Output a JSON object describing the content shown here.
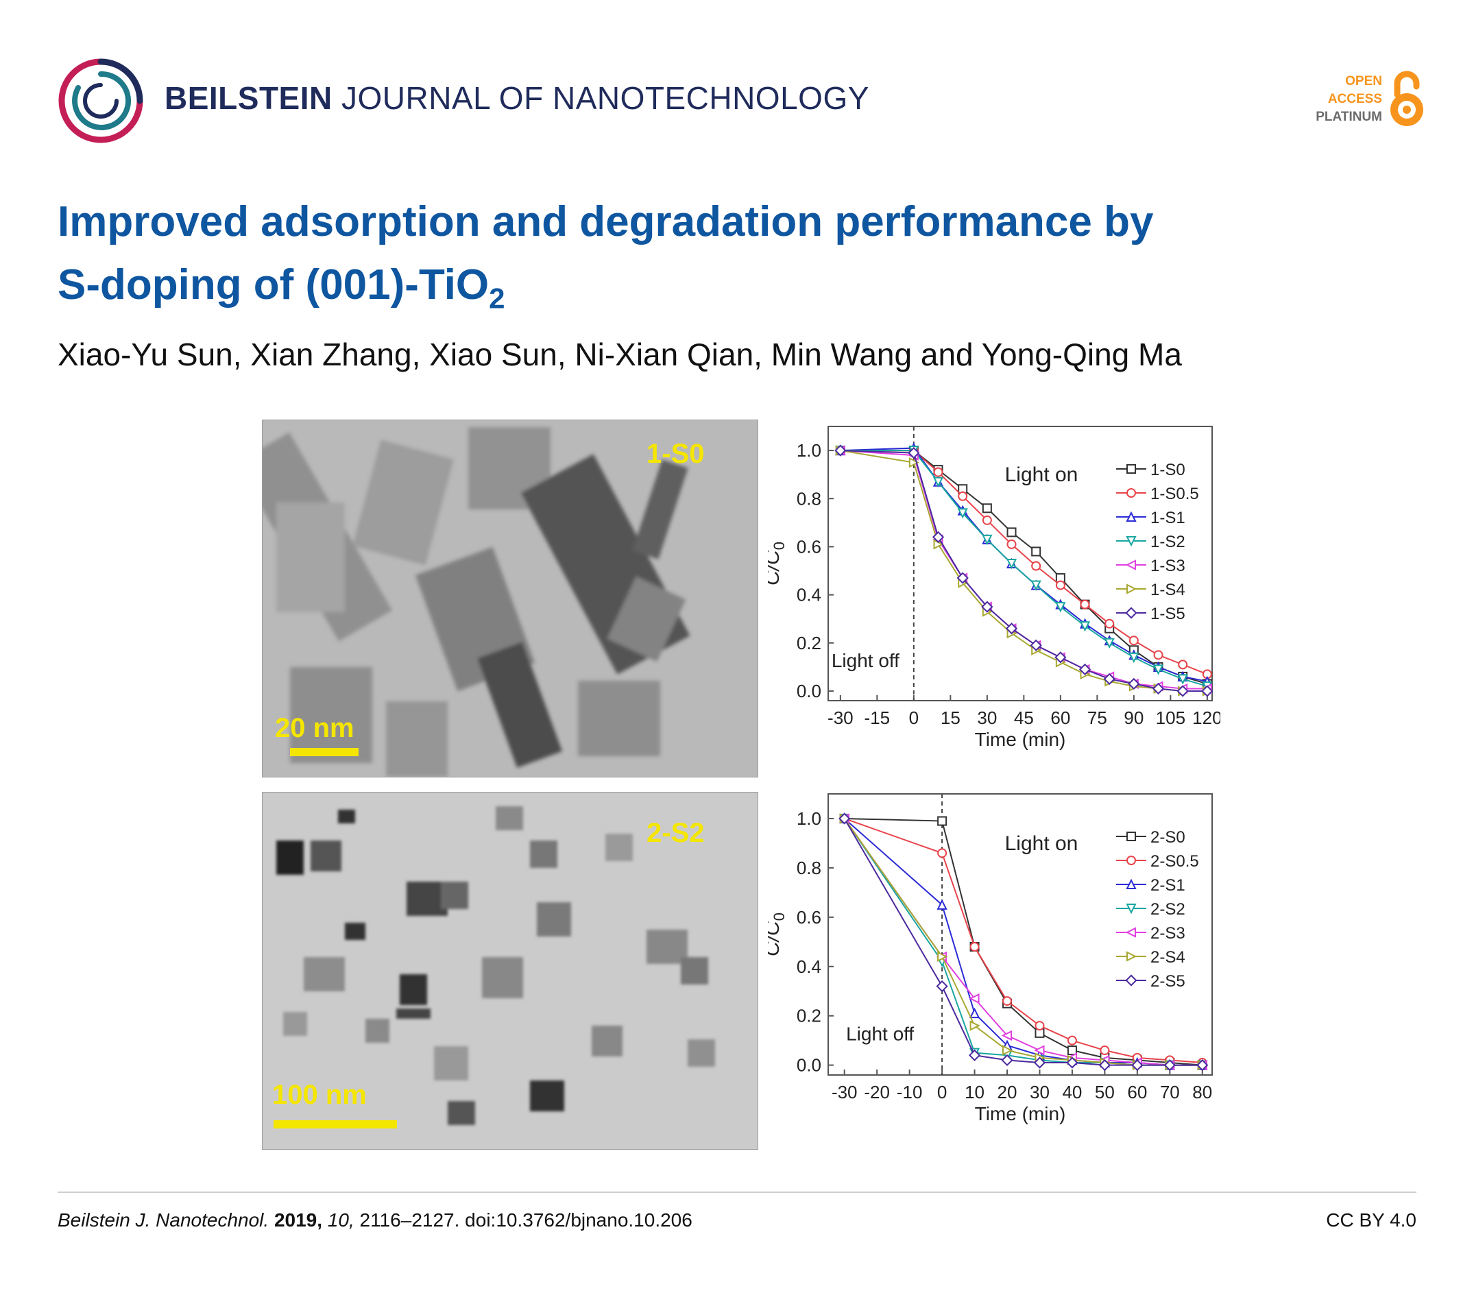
{
  "header": {
    "journal_bold": "BEILSTEIN",
    "journal_light": "JOURNAL OF NANOTECHNOLOGY",
    "oa_line1": "OPEN",
    "oa_line2": "ACCESS",
    "oa_line3": "PLATINUM",
    "colors": {
      "navy": "#1f2b5b",
      "open_access": "#f7941d",
      "title": "#0f56a0"
    }
  },
  "article": {
    "title_line1": "Improved adsorption and degradation performance by",
    "title_line2_prefix": "S-doping of (001)-TiO",
    "title_line2_sub": "2",
    "authors": "Xiao-Yu Sun, Xian Zhang, Xiao Sun, Ni-Xian Qian, Min Wang and Yong-Qing Ma"
  },
  "figure": {
    "tem_top": {
      "label": "1-S0",
      "scale": "20 nm"
    },
    "tem_bottom": {
      "label": "2-S2",
      "scale": "100 nm"
    }
  },
  "chart_data": [
    {
      "type": "line",
      "xlabel": "Time (min)",
      "ylabel": "C/C",
      "ylabel_sub": "0",
      "xlim": [
        -35,
        122
      ],
      "ylim": [
        -0.04,
        1.1
      ],
      "xticks": [
        -30,
        -15,
        0,
        15,
        30,
        45,
        60,
        75,
        90,
        105,
        120
      ],
      "xtick_labels": [
        "-30",
        "-15",
        "0",
        "15",
        "30",
        "45",
        "60",
        "75",
        "90",
        "105",
        "120"
      ],
      "yticks": [
        0.0,
        0.2,
        0.4,
        0.6,
        0.8,
        1.0
      ],
      "ytick_labels": [
        "0.0",
        "0.2",
        "0.4",
        "0.6",
        "0.8",
        "1.0"
      ],
      "annotations": [
        "Light on",
        "Light off"
      ],
      "legend_position": "top-right",
      "x": [
        -30,
        0,
        10,
        20,
        30,
        40,
        50,
        60,
        70,
        80,
        90,
        100,
        110,
        120
      ],
      "series": [
        {
          "name": "1-S0",
          "marker": "square",
          "color": "#333333",
          "values": [
            1.0,
            1.0,
            0.92,
            0.84,
            0.76,
            0.66,
            0.58,
            0.47,
            0.36,
            0.26,
            0.17,
            0.1,
            0.06,
            0.03
          ]
        },
        {
          "name": "1-S0.5",
          "marker": "circle",
          "color": "#e8434a",
          "values": [
            1.0,
            1.0,
            0.91,
            0.81,
            0.71,
            0.61,
            0.52,
            0.44,
            0.36,
            0.28,
            0.21,
            0.15,
            0.11,
            0.07
          ]
        },
        {
          "name": "1-S1",
          "marker": "triangle-up",
          "color": "#2b2bd6",
          "values": [
            1.0,
            1.01,
            0.87,
            0.75,
            0.63,
            0.53,
            0.44,
            0.36,
            0.28,
            0.21,
            0.15,
            0.1,
            0.06,
            0.04
          ]
        },
        {
          "name": "1-S2",
          "marker": "triangle-down",
          "color": "#19a6a0",
          "values": [
            1.0,
            1.0,
            0.87,
            0.74,
            0.63,
            0.53,
            0.44,
            0.35,
            0.27,
            0.2,
            0.14,
            0.09,
            0.05,
            0.02
          ]
        },
        {
          "name": "1-S3",
          "marker": "triangle-left",
          "color": "#e040e0",
          "values": [
            1.0,
            0.98,
            0.63,
            0.47,
            0.35,
            0.26,
            0.19,
            0.14,
            0.09,
            0.06,
            0.03,
            0.02,
            0.01,
            0.01
          ]
        },
        {
          "name": "1-S4",
          "marker": "triangle-right",
          "color": "#a8a832",
          "values": [
            1.0,
            0.95,
            0.61,
            0.45,
            0.33,
            0.24,
            0.17,
            0.12,
            0.07,
            0.04,
            0.02,
            0.01,
            0.0,
            0.0
          ]
        },
        {
          "name": "1-S5",
          "marker": "diamond",
          "color": "#4b2a9e",
          "values": [
            1.0,
            0.99,
            0.64,
            0.47,
            0.35,
            0.26,
            0.19,
            0.14,
            0.09,
            0.05,
            0.03,
            0.01,
            0.0,
            0.0
          ]
        }
      ]
    },
    {
      "type": "line",
      "xlabel": "Time (min)",
      "ylabel": "C/C",
      "ylabel_sub": "0",
      "xlim": [
        -35,
        83
      ],
      "ylim": [
        -0.04,
        1.1
      ],
      "xticks": [
        -30,
        -20,
        -10,
        0,
        10,
        20,
        30,
        40,
        50,
        60,
        70,
        80
      ],
      "xtick_labels": [
        "-30",
        "-20",
        "-10",
        "0",
        "10",
        "20",
        "30",
        "40",
        "50",
        "60",
        "70",
        "80"
      ],
      "yticks": [
        0.0,
        0.2,
        0.4,
        0.6,
        0.8,
        1.0
      ],
      "ytick_labels": [
        "0.0",
        "0.2",
        "0.4",
        "0.6",
        "0.8",
        "1.0"
      ],
      "annotations": [
        "Light on",
        "Light off"
      ],
      "legend_position": "top-right",
      "x": [
        -30,
        0,
        10,
        20,
        30,
        40,
        50,
        60,
        70,
        80
      ],
      "series": [
        {
          "name": "2-S0",
          "marker": "square",
          "color": "#333333",
          "values": [
            1.0,
            0.99,
            0.48,
            0.25,
            0.13,
            0.06,
            0.03,
            0.02,
            0.01,
            0.0
          ]
        },
        {
          "name": "2-S0.5",
          "marker": "circle",
          "color": "#e8434a",
          "values": [
            1.0,
            0.86,
            0.48,
            0.26,
            0.16,
            0.1,
            0.06,
            0.03,
            0.02,
            0.01
          ]
        },
        {
          "name": "2-S1",
          "marker": "triangle-up",
          "color": "#2b2bd6",
          "values": [
            1.0,
            0.65,
            0.21,
            0.08,
            0.04,
            0.02,
            0.01,
            0.01,
            0.0,
            0.0
          ]
        },
        {
          "name": "2-S2",
          "marker": "triangle-down",
          "color": "#19a6a0",
          "values": [
            1.0,
            0.42,
            0.05,
            0.04,
            0.02,
            0.01,
            0.01,
            0.0,
            0.0,
            0.0
          ]
        },
        {
          "name": "2-S3",
          "marker": "triangle-left",
          "color": "#e040e0",
          "values": [
            1.0,
            0.44,
            0.27,
            0.12,
            0.06,
            0.03,
            0.02,
            0.01,
            0.0,
            0.0
          ]
        },
        {
          "name": "2-S4",
          "marker": "triangle-right",
          "color": "#a8a832",
          "values": [
            1.0,
            0.44,
            0.16,
            0.06,
            0.03,
            0.02,
            0.01,
            0.0,
            0.0,
            0.0
          ]
        },
        {
          "name": "2-S5",
          "marker": "diamond",
          "color": "#4b2a9e",
          "values": [
            1.0,
            0.32,
            0.04,
            0.02,
            0.01,
            0.01,
            0.0,
            0.0,
            0.0,
            0.0
          ]
        }
      ]
    }
  ],
  "footer": {
    "journal_abbrev": "Beilstein J. Nanotechnol.",
    "year": "2019,",
    "volume": "10,",
    "pages_doi": "2116–2127. doi:10.3762/bjnano.10.206",
    "license": "CC BY 4.0"
  }
}
